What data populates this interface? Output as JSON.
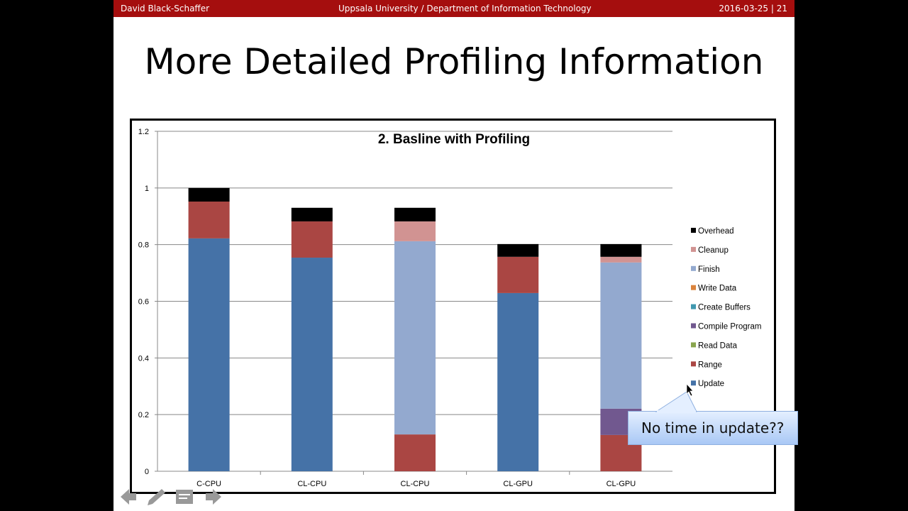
{
  "header": {
    "author": "David Black-Schaffer",
    "institution": "Uppsala University / Department of Information Technology",
    "date_page": "2016-03-25 | 21"
  },
  "slide_title": "More Detailed Profiling Information",
  "callout": "No time in update??",
  "chart_data": {
    "type": "bar",
    "stacked": true,
    "title": "2. Basline with Profiling",
    "categories": [
      "C-CPU",
      "CL-CPU",
      "CL-CPU",
      "CL-GPU",
      "CL-GPU"
    ],
    "ylim": [
      0,
      1.2
    ],
    "yticks": [
      "0",
      "0.2",
      "0.4",
      "0.6",
      "0.8",
      "1",
      "1.2"
    ],
    "grid": true,
    "legend_position": "right",
    "series": [
      {
        "name": "Update",
        "color": "#4572a7",
        "values": [
          0.822,
          0.754,
          0,
          0.629,
          0
        ]
      },
      {
        "name": "Range",
        "color": "#aa4643",
        "values": [
          0.13,
          0.128,
          0.13,
          0.128,
          0.128
        ]
      },
      {
        "name": "Read Data",
        "color": "#89a54e",
        "values": [
          0,
          0,
          0,
          0,
          0
        ]
      },
      {
        "name": "Compile Program",
        "color": "#71588f",
        "values": [
          0,
          0,
          0,
          0,
          0.093
        ]
      },
      {
        "name": "Create Buffers",
        "color": "#4198af",
        "values": [
          0,
          0,
          0,
          0,
          0
        ]
      },
      {
        "name": "Write Data",
        "color": "#db843d",
        "values": [
          0,
          0,
          0,
          0,
          0
        ]
      },
      {
        "name": "Finish",
        "color": "#93a9cf",
        "values": [
          0,
          0,
          0.682,
          0,
          0.516
        ]
      },
      {
        "name": "Cleanup",
        "color": "#d19392",
        "values": [
          0,
          0,
          0.07,
          0,
          0.02
        ]
      },
      {
        "name": "Overhead",
        "color": "#000000",
        "values": [
          0.048,
          0.048,
          0.048,
          0.045,
          0.045
        ]
      }
    ]
  },
  "nav": {
    "icons": [
      "back-arrow-icon",
      "pen-icon",
      "menu-icon",
      "forward-arrow-icon"
    ]
  }
}
